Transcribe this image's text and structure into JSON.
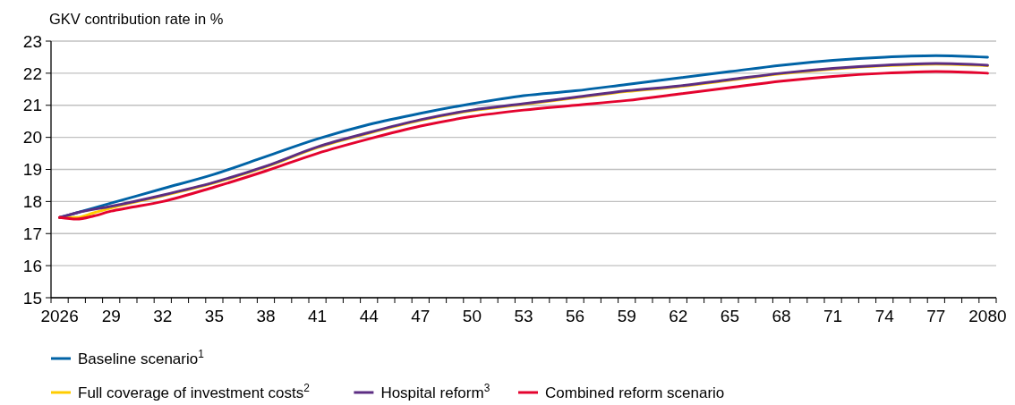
{
  "chart_data": {
    "type": "line",
    "ylabel": "GKV contribution rate in %",
    "xlim": [
      2025.5,
      2080.5
    ],
    "xticks": [
      {
        "value": 2026,
        "label": "2026"
      },
      {
        "value": 2029,
        "label": "29"
      },
      {
        "value": 2032,
        "label": "32"
      },
      {
        "value": 2035,
        "label": "35"
      },
      {
        "value": 2038,
        "label": "38"
      },
      {
        "value": 2041,
        "label": "41"
      },
      {
        "value": 2044,
        "label": "44"
      },
      {
        "value": 2047,
        "label": "47"
      },
      {
        "value": 2050,
        "label": "50"
      },
      {
        "value": 2053,
        "label": "53"
      },
      {
        "value": 2056,
        "label": "56"
      },
      {
        "value": 2059,
        "label": "59"
      },
      {
        "value": 2062,
        "label": "62"
      },
      {
        "value": 2065,
        "label": "65"
      },
      {
        "value": 2068,
        "label": "68"
      },
      {
        "value": 2071,
        "label": "71"
      },
      {
        "value": 2074,
        "label": "74"
      },
      {
        "value": 2077,
        "label": "77"
      },
      {
        "value": 2080,
        "label": "2080"
      }
    ],
    "ylim": [
      15,
      23
    ],
    "yticks": [
      15,
      16,
      17,
      18,
      19,
      20,
      21,
      22,
      23
    ],
    "grid": "y",
    "legend": "bottom",
    "marker": "none",
    "line_style": "solid",
    "series": [
      {
        "name": "Baseline scenario$^{1}$",
        "color": "#0063a6",
        "x": [
          2026,
          2027,
          2029,
          2032,
          2035,
          2038,
          2041,
          2044,
          2047,
          2050,
          2053,
          2056,
          2059,
          2062,
          2065,
          2068,
          2071,
          2074,
          2077,
          2080
        ],
        "values": [
          17.5,
          17.65,
          17.95,
          18.4,
          18.85,
          19.4,
          19.95,
          20.4,
          20.75,
          21.05,
          21.3,
          21.45,
          21.65,
          21.85,
          22.05,
          22.25,
          22.4,
          22.5,
          22.55,
          22.5
        ]
      },
      {
        "name": "Full coverage of investment costs$^{2}$",
        "color": "#ffcc00",
        "x": [
          2026,
          2027,
          2028,
          2029,
          2032,
          2035,
          2038,
          2041,
          2044,
          2047,
          2050,
          2053,
          2056,
          2059,
          2062,
          2065,
          2068,
          2071,
          2074,
          2077,
          2080
        ],
        "values": [
          17.5,
          17.5,
          17.65,
          17.8,
          18.18,
          18.58,
          19.08,
          19.68,
          20.13,
          20.53,
          20.83,
          21.03,
          21.23,
          21.43,
          21.58,
          21.78,
          21.98,
          22.13,
          22.23,
          22.28,
          22.23
        ]
      },
      {
        "name": "Hospital reform$^{3}$",
        "color": "#5c2d83",
        "x": [
          2026,
          2027,
          2029,
          2032,
          2035,
          2038,
          2041,
          2044,
          2047,
          2050,
          2053,
          2056,
          2059,
          2062,
          2065,
          2068,
          2071,
          2074,
          2077,
          2080
        ],
        "values": [
          17.5,
          17.65,
          17.85,
          18.2,
          18.6,
          19.1,
          19.7,
          20.15,
          20.55,
          20.85,
          21.05,
          21.25,
          21.45,
          21.6,
          21.8,
          22.0,
          22.15,
          22.25,
          22.3,
          22.25
        ]
      },
      {
        "name": "Combined reform scenario",
        "color": "#e4032e",
        "x": [
          2026,
          2027,
          2028,
          2029,
          2030,
          2032,
          2035,
          2038,
          2041,
          2044,
          2047,
          2050,
          2053,
          2056,
          2059,
          2062,
          2065,
          2068,
          2071,
          2074,
          2077,
          2080
        ],
        "values": [
          17.5,
          17.45,
          17.55,
          17.7,
          17.8,
          18.0,
          18.45,
          18.95,
          19.5,
          19.95,
          20.35,
          20.65,
          20.85,
          21.0,
          21.15,
          21.35,
          21.55,
          21.75,
          21.9,
          22.0,
          22.05,
          22.0
        ]
      }
    ]
  }
}
